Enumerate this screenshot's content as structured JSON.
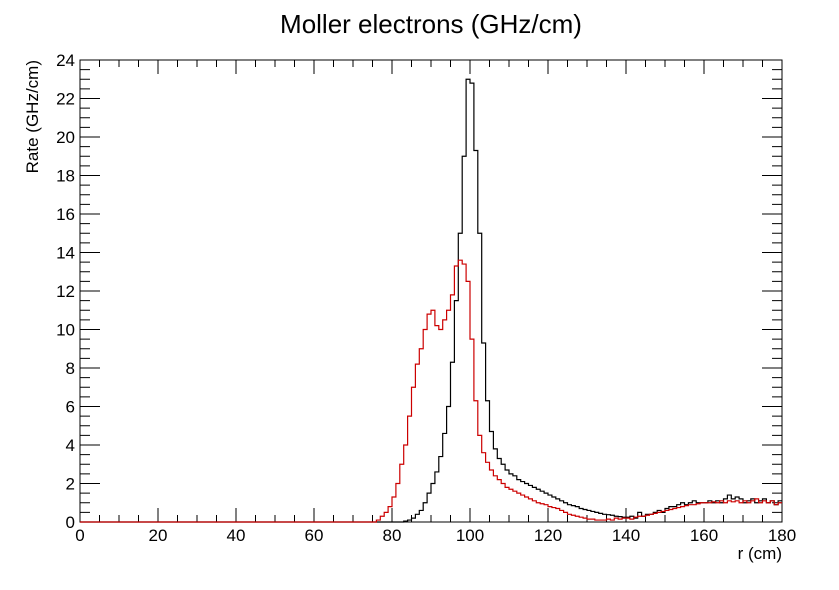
{
  "chart_data": {
    "type": "line",
    "title": "Moller electrons (GHz/cm)",
    "xlabel": "r (cm)",
    "ylabel": "Rate (GHz/cm)",
    "xlim": [
      0,
      180
    ],
    "ylim": [
      0,
      24
    ],
    "x_ticks": [
      0,
      20,
      40,
      60,
      80,
      100,
      120,
      140,
      160,
      180
    ],
    "y_ticks": [
      0,
      2,
      4,
      6,
      8,
      10,
      12,
      14,
      16,
      18,
      20,
      22,
      24
    ],
    "grid": false,
    "legend": "none",
    "bin_width": 1,
    "series": [
      {
        "color": "#000000",
        "points": [
          [
            0,
            0
          ],
          [
            82,
            0
          ],
          [
            83,
            0.05
          ],
          [
            84,
            0.1
          ],
          [
            85,
            0.2
          ],
          [
            86,
            0.4
          ],
          [
            87,
            0.6
          ],
          [
            88,
            1.0
          ],
          [
            89,
            1.5
          ],
          [
            90,
            2.0
          ],
          [
            91,
            2.6
          ],
          [
            92,
            3.4
          ],
          [
            93,
            4.6
          ],
          [
            94,
            6.0
          ],
          [
            95,
            8.3
          ],
          [
            96,
            11.5
          ],
          [
            97,
            15.0
          ],
          [
            98,
            19.0
          ],
          [
            99,
            23.0
          ],
          [
            100,
            22.8
          ],
          [
            101,
            19.3
          ],
          [
            102,
            15.0
          ],
          [
            103,
            9.3
          ],
          [
            104,
            6.3
          ],
          [
            105,
            4.7
          ],
          [
            106,
            3.8
          ],
          [
            107,
            3.3
          ],
          [
            108,
            3.0
          ],
          [
            109,
            2.7
          ],
          [
            110,
            2.5
          ],
          [
            111,
            2.4
          ],
          [
            112,
            2.2
          ],
          [
            113,
            2.1
          ],
          [
            114,
            2.0
          ],
          [
            115,
            1.9
          ],
          [
            116,
            1.8
          ],
          [
            117,
            1.7
          ],
          [
            118,
            1.6
          ],
          [
            119,
            1.5
          ],
          [
            120,
            1.4
          ],
          [
            121,
            1.3
          ],
          [
            122,
            1.2
          ],
          [
            123,
            1.1
          ],
          [
            124,
            1.0
          ],
          [
            125,
            0.9
          ],
          [
            126,
            0.85
          ],
          [
            127,
            0.8
          ],
          [
            128,
            0.7
          ],
          [
            129,
            0.65
          ],
          [
            130,
            0.6
          ],
          [
            131,
            0.55
          ],
          [
            132,
            0.5
          ],
          [
            133,
            0.45
          ],
          [
            134,
            0.4
          ],
          [
            135,
            0.38
          ],
          [
            136,
            0.35
          ],
          [
            137,
            0.3
          ],
          [
            138,
            0.28
          ],
          [
            139,
            0.25
          ],
          [
            140,
            0.25
          ],
          [
            141,
            0.3
          ],
          [
            142,
            0.2
          ],
          [
            143,
            0.5
          ],
          [
            144,
            0.3
          ],
          [
            145,
            0.4
          ],
          [
            146,
            0.4
          ],
          [
            147,
            0.5
          ],
          [
            148,
            0.6
          ],
          [
            149,
            0.5
          ],
          [
            150,
            0.7
          ],
          [
            151,
            0.8
          ],
          [
            152,
            0.8
          ],
          [
            153,
            0.9
          ],
          [
            154,
            1.0
          ],
          [
            155,
            0.9
          ],
          [
            156,
            1.0
          ],
          [
            157,
            1.1
          ],
          [
            158,
            1.0
          ],
          [
            159,
            1.0
          ],
          [
            160,
            1.0
          ],
          [
            161,
            1.1
          ],
          [
            162,
            1.0
          ],
          [
            163,
            1.1
          ],
          [
            164,
            1.0
          ],
          [
            165,
            1.2
          ],
          [
            166,
            1.4
          ],
          [
            167,
            1.2
          ],
          [
            168,
            1.3
          ],
          [
            169,
            1.2
          ],
          [
            170,
            1.0
          ],
          [
            171,
            1.1
          ],
          [
            172,
            1.2
          ],
          [
            173,
            1.0
          ],
          [
            174,
            1.1
          ],
          [
            175,
            1.2
          ],
          [
            176,
            1.0
          ],
          [
            177,
            1.1
          ],
          [
            178,
            0.9
          ],
          [
            179,
            1.1
          ]
        ]
      },
      {
        "color": "#cc0000",
        "points": [
          [
            0,
            0
          ],
          [
            75,
            0
          ],
          [
            76,
            0.1
          ],
          [
            77,
            0.3
          ],
          [
            78,
            0.5
          ],
          [
            79,
            0.8
          ],
          [
            80,
            1.3
          ],
          [
            81,
            2.0
          ],
          [
            82,
            3.0
          ],
          [
            83,
            4.0
          ],
          [
            84,
            5.5
          ],
          [
            85,
            7.0
          ],
          [
            86,
            8.2
          ],
          [
            87,
            9.0
          ],
          [
            88,
            10.0
          ],
          [
            89,
            10.8
          ],
          [
            90,
            11.0
          ],
          [
            91,
            10.2
          ],
          [
            92,
            10.0
          ],
          [
            93,
            10.5
          ],
          [
            94,
            11.0
          ],
          [
            95,
            11.8
          ],
          [
            96,
            13.3
          ],
          [
            97,
            13.6
          ],
          [
            98,
            13.4
          ],
          [
            99,
            12.5
          ],
          [
            100,
            9.5
          ],
          [
            101,
            6.3
          ],
          [
            102,
            4.5
          ],
          [
            103,
            3.6
          ],
          [
            104,
            3.1
          ],
          [
            105,
            2.7
          ],
          [
            106,
            2.4
          ],
          [
            107,
            2.2
          ],
          [
            108,
            2.0
          ],
          [
            109,
            1.8
          ],
          [
            110,
            1.7
          ],
          [
            111,
            1.6
          ],
          [
            112,
            1.5
          ],
          [
            113,
            1.4
          ],
          [
            114,
            1.3
          ],
          [
            115,
            1.2
          ],
          [
            116,
            1.1
          ],
          [
            117,
            1.0
          ],
          [
            118,
            0.95
          ],
          [
            119,
            0.9
          ],
          [
            120,
            0.8
          ],
          [
            121,
            0.75
          ],
          [
            122,
            0.7
          ],
          [
            123,
            0.6
          ],
          [
            124,
            0.5
          ],
          [
            125,
            0.4
          ],
          [
            126,
            0.35
          ],
          [
            127,
            0.3
          ],
          [
            128,
            0.25
          ],
          [
            129,
            0.2
          ],
          [
            130,
            0.15
          ],
          [
            131,
            0.15
          ],
          [
            132,
            0.1
          ],
          [
            133,
            0.1
          ],
          [
            134,
            0.1
          ],
          [
            135,
            0.15
          ],
          [
            136,
            0.1
          ],
          [
            137,
            0.2
          ],
          [
            138,
            0.15
          ],
          [
            139,
            0.2
          ],
          [
            140,
            0.2
          ],
          [
            141,
            0.15
          ],
          [
            142,
            0.25
          ],
          [
            143,
            0.3
          ],
          [
            144,
            0.3
          ],
          [
            145,
            0.35
          ],
          [
            146,
            0.4
          ],
          [
            147,
            0.45
          ],
          [
            148,
            0.5
          ],
          [
            149,
            0.55
          ],
          [
            150,
            0.6
          ],
          [
            151,
            0.65
          ],
          [
            152,
            0.7
          ],
          [
            153,
            0.75
          ],
          [
            154,
            0.8
          ],
          [
            155,
            0.85
          ],
          [
            156,
            0.9
          ],
          [
            157,
            0.9
          ],
          [
            158,
            0.95
          ],
          [
            159,
            1.0
          ],
          [
            160,
            1.0
          ],
          [
            161,
            1.0
          ],
          [
            162,
            1.05
          ],
          [
            163,
            1.0
          ],
          [
            164,
            1.1
          ],
          [
            165,
            1.0
          ],
          [
            166,
            1.1
          ],
          [
            167,
            1.05
          ],
          [
            168,
            1.1
          ],
          [
            169,
            1.0
          ],
          [
            170,
            1.1
          ],
          [
            171,
            1.0
          ],
          [
            172,
            1.1
          ],
          [
            173,
            1.2
          ],
          [
            174,
            1.0
          ],
          [
            175,
            1.1
          ],
          [
            176,
            1.0
          ],
          [
            177,
            1.1
          ],
          [
            178,
            0.9
          ],
          [
            179,
            1.0
          ]
        ]
      }
    ]
  }
}
